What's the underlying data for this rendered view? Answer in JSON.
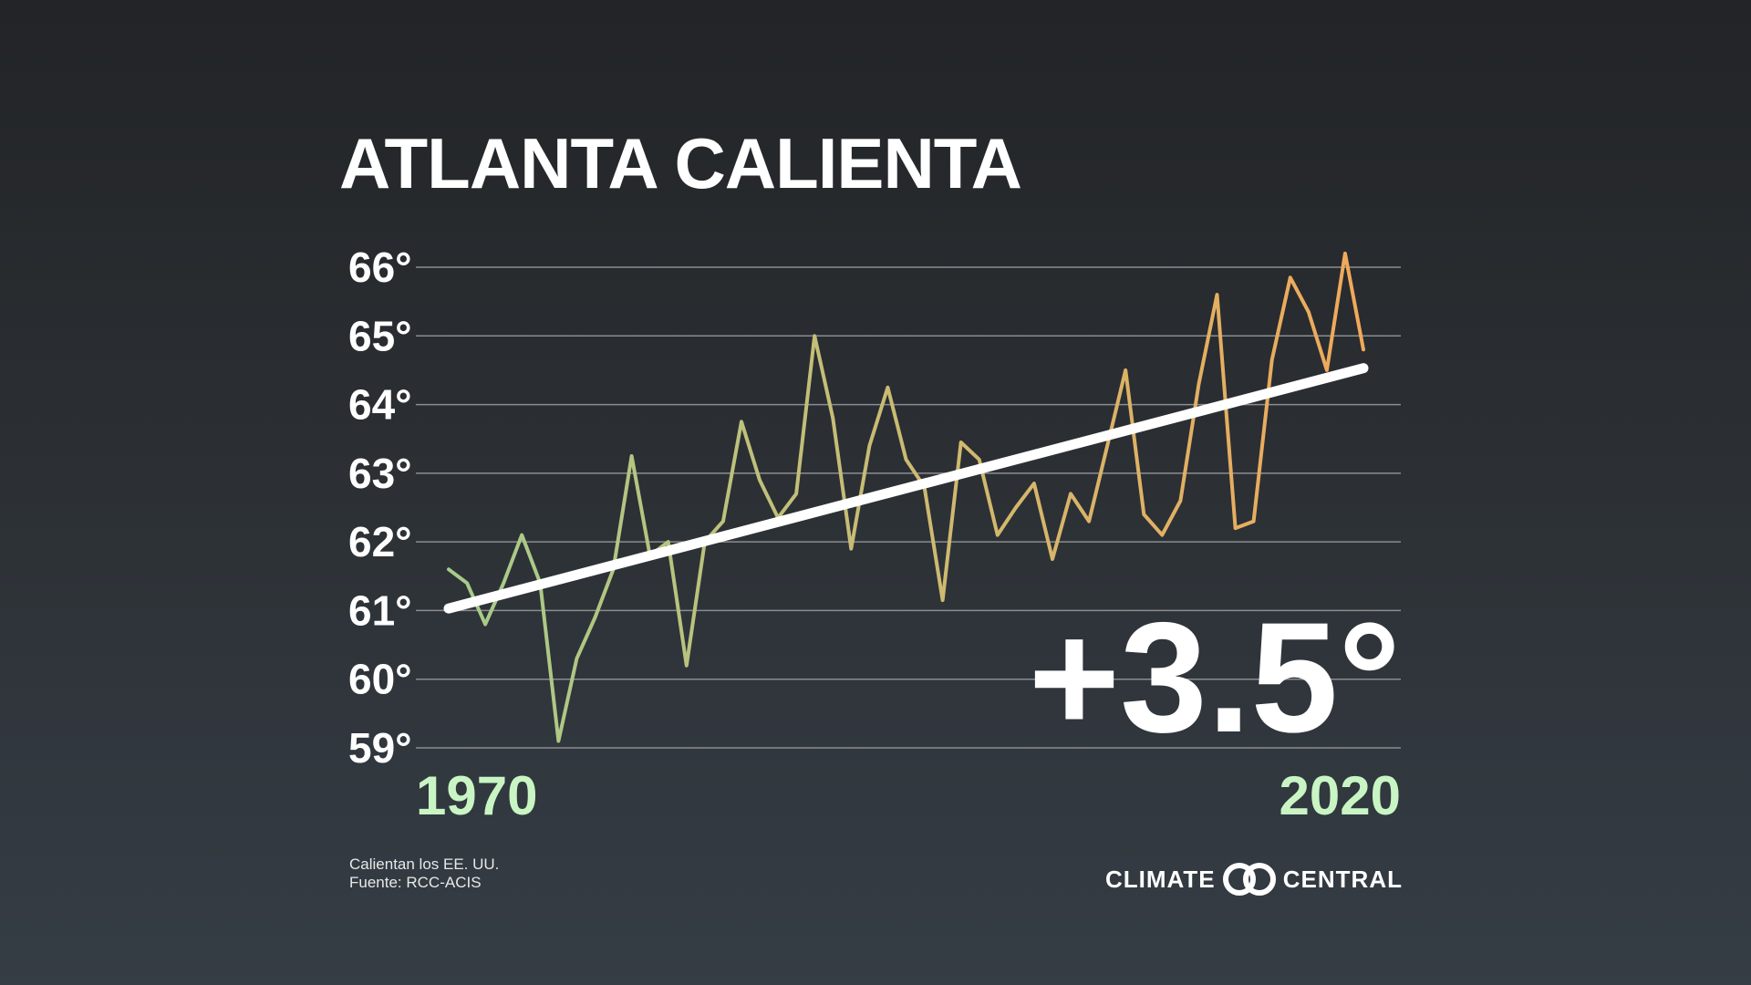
{
  "title": "ATLANTA CALIENTA",
  "change_label": "+3.5°",
  "source_lines": [
    "Calientan los EE. UU.",
    "Fuente: RCC-ACIS"
  ],
  "logo": {
    "left_text": "CLIMATE",
    "right_text": "CENTRAL",
    "icon": "climate-central-rings-icon"
  },
  "colors": {
    "line_start": "#a6cc8a",
    "line_end": "#f0a95a",
    "trend": "#ffffff",
    "x_tick": "#c9f5c4"
  },
  "chart_data": {
    "type": "line",
    "title": "ATLANTA CALIENTA",
    "xlabel": "",
    "ylabel": "",
    "ylim": [
      59,
      66
    ],
    "y_ticks": [
      59,
      60,
      61,
      62,
      63,
      64,
      65,
      66
    ],
    "y_tick_labels": [
      "59°",
      "60°",
      "61°",
      "62°",
      "63°",
      "64°",
      "65°",
      "66°"
    ],
    "x_range": [
      1970,
      2020
    ],
    "x_tick_labels": [
      "1970",
      "2020"
    ],
    "grid": true,
    "series": [
      {
        "x": [
          1970,
          1971,
          1972,
          1973,
          1974,
          1975,
          1976,
          1977,
          1978,
          1979,
          1980,
          1981,
          1982,
          1983,
          1984,
          1985,
          1986,
          1987,
          1988,
          1989,
          1990,
          1991,
          1992,
          1993,
          1994,
          1995,
          1996,
          1997,
          1998,
          1999,
          2000,
          2001,
          2002,
          2003,
          2004,
          2005,
          2006,
          2007,
          2008,
          2009,
          2010,
          2011,
          2012,
          2013,
          2014,
          2015,
          2016,
          2017,
          2018,
          2019,
          2020
        ],
        "values": [
          61.6,
          61.4,
          60.8,
          61.4,
          62.1,
          61.4,
          59.1,
          60.3,
          60.9,
          61.6,
          63.25,
          61.8,
          62.0,
          60.2,
          62.0,
          62.3,
          63.75,
          62.9,
          62.35,
          62.7,
          65.0,
          63.8,
          61.9,
          63.4,
          64.25,
          63.2,
          62.8,
          61.15,
          63.45,
          63.2,
          62.1,
          62.5,
          62.85,
          61.75,
          62.7,
          62.3,
          63.4,
          64.5,
          62.4,
          62.1,
          62.6,
          64.3,
          65.6,
          62.2,
          62.3,
          64.65,
          65.85,
          65.35,
          64.5,
          66.2,
          64.8
        ]
      }
    ],
    "trend": {
      "from": [
        1970,
        61.03
      ],
      "to": [
        2020,
        64.53
      ]
    },
    "annotations": [
      "+3.5°"
    ]
  }
}
